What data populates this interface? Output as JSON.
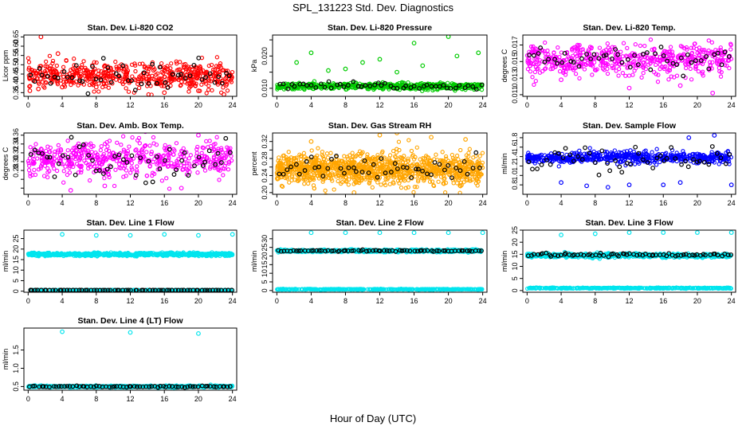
{
  "figure": {
    "title": "SPL_131223  Std. Dev. Diagnostics",
    "xlabel": "Hour of Day (UTC)"
  },
  "chart_data": [
    {
      "type": "scatter",
      "title": "Stan. Dev. Li-820 CO2",
      "ylabel": "Licor ppm",
      "xlim": [
        -0.5,
        24.5
      ],
      "ylim": [
        0.33,
        0.66
      ],
      "xticks": [
        0,
        4,
        8,
        12,
        16,
        20,
        24
      ],
      "yticks": [
        0.35,
        0.4,
        0.45,
        0.5,
        0.55,
        0.6,
        0.65
      ],
      "ytick_labels": [
        "0.35",
        "0.40",
        "0.45",
        "0.50",
        "0.55",
        "0.60",
        "0.65"
      ],
      "colors": {
        "dense": "#ff0000",
        "hourly": "#000000"
      },
      "series": [
        {
          "kind": "dense",
          "mean": 0.44,
          "sd": 0.035,
          "n": 560
        },
        {
          "kind": "hourly",
          "mean": 0.44,
          "sd": 0.04,
          "n": 50
        },
        {
          "kind": "outliers",
          "points": [
            [
              0.2,
              0.36
            ],
            [
              1.2,
              0.37
            ],
            [
              3.5,
              0.56
            ],
            [
              4.0,
              0.38
            ],
            [
              8.0,
              0.38
            ],
            [
              16.0,
              0.35
            ],
            [
              20.0,
              0.36
            ],
            [
              23.0,
              0.34
            ],
            [
              1.5,
              0.65
            ]
          ]
        }
      ]
    },
    {
      "type": "scatter",
      "title": "Stan. Dev. Li-820 Pressure",
      "ylabel": "kPa",
      "xlim": [
        -0.5,
        24.5
      ],
      "ylim": [
        0.0075,
        0.0265
      ],
      "xticks": [
        0,
        4,
        8,
        12,
        16,
        20,
        24
      ],
      "yticks": [
        0.01,
        0.015,
        0.02,
        0.025
      ],
      "ytick_labels": [
        "0.010",
        "",
        "0.020",
        ""
      ],
      "colors": {
        "dense": "#00cc00",
        "hourly": "#000000"
      },
      "series": [
        {
          "kind": "dense",
          "mean": 0.0106,
          "sd": 0.0005,
          "n": 560
        },
        {
          "kind": "hourly",
          "mean": 0.0107,
          "sd": 0.0006,
          "n": 50
        },
        {
          "kind": "outliers",
          "points": [
            [
              2.3,
              0.018
            ],
            [
              4.0,
              0.021
            ],
            [
              8.0,
              0.016
            ],
            [
              10.0,
              0.018
            ],
            [
              12.0,
              0.019
            ],
            [
              16.0,
              0.024
            ],
            [
              17.0,
              0.017
            ],
            [
              20.0,
              0.026
            ],
            [
              21.0,
              0.02
            ],
            [
              23.5,
              0.021
            ],
            [
              6.0,
              0.0155
            ],
            [
              14.0,
              0.015
            ]
          ]
        }
      ]
    },
    {
      "type": "scatter",
      "title": "Stan. Dev. Li-820 Temp.",
      "ylabel": "degrees C",
      "xlim": [
        -0.5,
        24.5
      ],
      "ylim": [
        0.0108,
        0.0182
      ],
      "xticks": [
        0,
        4,
        8,
        12,
        16,
        20,
        24
      ],
      "yticks": [
        0.011,
        0.013,
        0.015,
        0.017
      ],
      "ytick_labels": [
        "0.011",
        "0.013",
        "0.015",
        "0.017"
      ],
      "colors": {
        "dense": "#ff00ff",
        "hourly": "#000000"
      },
      "series": [
        {
          "kind": "dense",
          "mean": 0.0152,
          "sd": 0.0009,
          "n": 520
        },
        {
          "kind": "hourly",
          "mean": 0.0152,
          "sd": 0.0008,
          "n": 50
        },
        {
          "kind": "outliers",
          "points": [
            [
              21.8,
              0.0112
            ],
            [
              4.0,
              0.0128
            ],
            [
              12.0,
              0.0118
            ],
            [
              18.0,
              0.0121
            ]
          ]
        }
      ]
    },
    {
      "type": "scatter",
      "title": "Stan. Dev. Amb. Box Temp.",
      "ylabel": "degrees C",
      "xlim": [
        -0.5,
        24.5
      ],
      "ylim": [
        0.226,
        0.365
      ],
      "xticks": [
        0,
        4,
        8,
        12,
        16,
        20,
        24
      ],
      "yticks": [
        0.24,
        0.26,
        0.28,
        0.3,
        0.32,
        0.34,
        0.36
      ],
      "ytick_labels": [
        "",
        "",
        "0.28",
        "0.30",
        "0.32",
        "0.34",
        "0.36"
      ],
      "colors": {
        "dense": "#ff00ff",
        "hourly": "#000000"
      },
      "series": [
        {
          "kind": "dense",
          "mean": 0.305,
          "sd": 0.02,
          "n": 520
        },
        {
          "kind": "hourly",
          "mean": 0.305,
          "sd": 0.02,
          "n": 50
        },
        {
          "kind": "outliers",
          "points": [
            [
              5.0,
              0.235
            ],
            [
              9.0,
              0.245
            ],
            [
              18.0,
              0.24
            ],
            [
              20.0,
              0.36
            ]
          ]
        }
      ]
    },
    {
      "type": "scatter",
      "title": "Stan. Dev. Gas Stream RH",
      "ylabel": "percent",
      "xlim": [
        -0.5,
        24.5
      ],
      "ylim": [
        0.196,
        0.34
      ],
      "xticks": [
        0,
        4,
        8,
        12,
        16,
        20,
        24
      ],
      "yticks": [
        0.2,
        0.22,
        0.24,
        0.26,
        0.28,
        0.3,
        0.32
      ],
      "ytick_labels": [
        "0.20",
        "",
        "0.24",
        "",
        "0.28",
        "",
        "0.32"
      ],
      "colors": {
        "dense": "#ffa500",
        "hourly": "#000000"
      },
      "series": [
        {
          "kind": "dense",
          "mean": 0.255,
          "sd": 0.018,
          "n": 1100
        },
        {
          "kind": "hourly",
          "mean": 0.258,
          "sd": 0.015,
          "n": 50
        },
        {
          "kind": "outliers",
          "points": [
            [
              14.0,
              0.34
            ],
            [
              12.0,
              0.335
            ],
            [
              18.0,
              0.33
            ],
            [
              22.0,
              0.325
            ],
            [
              4.0,
              0.32
            ],
            [
              9.0,
              0.2
            ]
          ]
        }
      ]
    },
    {
      "type": "scatter",
      "title": "Stan. Dev. Sample Flow",
      "ylabel": "ml/min",
      "xlim": [
        -0.5,
        24.5
      ],
      "ylim": [
        0.6,
        1.9
      ],
      "xticks": [
        0,
        4,
        8,
        12,
        16,
        20,
        24
      ],
      "yticks": [
        0.8,
        1.0,
        1.2,
        1.4,
        1.6,
        1.8
      ],
      "ytick_labels": [
        "0.8",
        "1.0",
        "1.2",
        "1.4",
        "1.6",
        "1.8"
      ],
      "colors": {
        "dense": "#0000ff",
        "hourly": "#000000"
      },
      "series": [
        {
          "kind": "dense",
          "mean": 1.38,
          "sd": 0.06,
          "n": 560
        },
        {
          "kind": "hourly",
          "mean": 1.3,
          "sd": 0.15,
          "n": 50
        },
        {
          "kind": "outliers",
          "points": [
            [
              4.0,
              0.85
            ],
            [
              7.0,
              0.78
            ],
            [
              9.5,
              0.75
            ],
            [
              12.0,
              0.8
            ],
            [
              16.0,
              0.8
            ],
            [
              18.0,
              0.85
            ],
            [
              19.0,
              1.8
            ],
            [
              22.0,
              1.85
            ],
            [
              24.0,
              0.8
            ]
          ]
        }
      ]
    },
    {
      "type": "scatter",
      "title": "Stan. Dev. Line 1 Flow",
      "ylabel": "ml/min",
      "xlim": [
        -0.5,
        24.5
      ],
      "ylim": [
        -0.5,
        29
      ],
      "xticks": [
        0,
        4,
        8,
        12,
        16,
        20,
        24
      ],
      "yticks": [
        0,
        5,
        10,
        15,
        20,
        25
      ],
      "ytick_labels": [
        "0",
        "5",
        "10",
        "15",
        "20",
        "25"
      ],
      "colors": {
        "dense": "#00e5ee",
        "hourly": "#000000"
      },
      "series": [
        {
          "kind": "dense",
          "mean": 17.5,
          "sd": 0.35,
          "n": 700
        },
        {
          "kind": "dense",
          "mean": 0.5,
          "sd": 0.05,
          "n": 400
        },
        {
          "kind": "hourly",
          "mean": 0.5,
          "sd": 0.02,
          "n": 70
        },
        {
          "kind": "outliers",
          "points": [
            [
              4.0,
              27
            ],
            [
              8.0,
              26.5
            ],
            [
              12.0,
              26.5
            ],
            [
              16.0,
              27
            ],
            [
              20.0,
              26.5
            ],
            [
              24.0,
              27
            ]
          ]
        }
      ]
    },
    {
      "type": "scatter",
      "title": "Stan. Dev. Line 2 Flow",
      "ylabel": "ml/min",
      "xlim": [
        -0.5,
        24.5
      ],
      "ylim": [
        -1,
        35
      ],
      "xticks": [
        0,
        4,
        8,
        12,
        16,
        20,
        24
      ],
      "yticks": [
        0,
        5,
        10,
        15,
        20,
        25,
        30
      ],
      "ytick_labels": [
        "0",
        "5",
        "10",
        "15",
        "20",
        "25",
        "30"
      ],
      "colors": {
        "dense": "#00e5ee",
        "hourly": "#000000"
      },
      "series": [
        {
          "kind": "dense",
          "mean": 23.0,
          "sd": 0.35,
          "n": 700
        },
        {
          "kind": "dense",
          "mean": 0.7,
          "sd": 0.1,
          "n": 400
        },
        {
          "kind": "hourly",
          "mean": 23.0,
          "sd": 0.2,
          "n": 70
        },
        {
          "kind": "outliers",
          "points": [
            [
              4.0,
              33.5
            ],
            [
              8.0,
              33.5
            ],
            [
              12.0,
              33.5
            ],
            [
              16.0,
              33.5
            ],
            [
              20.0,
              33.5
            ],
            [
              24.0,
              33.5
            ]
          ]
        }
      ]
    },
    {
      "type": "scatter",
      "title": "Stan. Dev. Line 3 Flow",
      "ylabel": "ml/min",
      "xlim": [
        -0.5,
        24.5
      ],
      "ylim": [
        -0.7,
        25
      ],
      "xticks": [
        0,
        4,
        8,
        12,
        16,
        20,
        24
      ],
      "yticks": [
        0,
        5,
        10,
        15,
        20,
        25
      ],
      "ytick_labels": [
        "0",
        "5",
        "10",
        "15",
        "20",
        "25"
      ],
      "colors": {
        "dense": "#00e5ee",
        "hourly": "#000000"
      },
      "series": [
        {
          "kind": "dense",
          "mean": 14.5,
          "sd": 0.4,
          "n": 700
        },
        {
          "kind": "dense",
          "mean": 1.0,
          "sd": 0.1,
          "n": 400
        },
        {
          "kind": "hourly",
          "mean": 14.8,
          "sd": 0.3,
          "n": 70
        },
        {
          "kind": "outliers",
          "points": [
            [
              4.0,
              23
            ],
            [
              8.0,
              23.5
            ],
            [
              12.0,
              24
            ],
            [
              16.0,
              24
            ],
            [
              20.0,
              24
            ],
            [
              24.0,
              24
            ]
          ]
        }
      ]
    },
    {
      "type": "scatter",
      "title": "Stan. Dev. Line 4 (LT) Flow",
      "ylabel": "ml/min",
      "xlim": [
        -0.5,
        24.5
      ],
      "ylim": [
        0.4,
        2.1
      ],
      "xticks": [
        0,
        4,
        8,
        12,
        16,
        20,
        24
      ],
      "yticks": [
        0.5,
        1.0,
        1.5
      ],
      "ytick_labels": [
        "0.5",
        "1.0",
        "1.5"
      ],
      "colors": {
        "dense": "#00e5ee",
        "hourly": "#000000"
      },
      "series": [
        {
          "kind": "dense",
          "mean": 0.5,
          "sd": 0.012,
          "n": 700
        },
        {
          "kind": "hourly",
          "mean": 0.5,
          "sd": 0.01,
          "n": 70
        },
        {
          "kind": "outliers",
          "points": [
            [
              4.0,
              2.0
            ],
            [
              12.0,
              1.98
            ],
            [
              20.0,
              1.95
            ]
          ]
        }
      ]
    }
  ]
}
